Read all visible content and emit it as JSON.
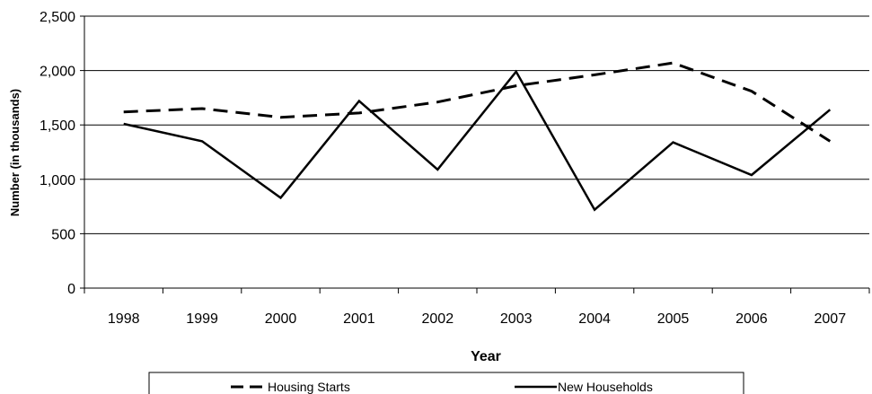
{
  "chart_data": {
    "type": "line",
    "title": "",
    "xlabel": "Year",
    "ylabel": "Number (in thousands)",
    "categories": [
      "1998",
      "1999",
      "2000",
      "2001",
      "2002",
      "2003",
      "2004",
      "2005",
      "2006",
      "2007"
    ],
    "ylim": [
      0,
      2500
    ],
    "yticks": [
      0,
      500,
      1000,
      1500,
      2000,
      2500
    ],
    "ytick_labels": [
      "0",
      "500",
      "1,000",
      "1,500",
      "2,000",
      "2,500"
    ],
    "grid": "horizontal",
    "legend_position": "bottom",
    "series": [
      {
        "name": "Housing Starts",
        "line_style": "dashed",
        "color": "#000000",
        "values": [
          1620,
          1650,
          1570,
          1610,
          1710,
          1860,
          1960,
          2070,
          1810,
          1350
        ]
      },
      {
        "name": "New Households",
        "line_style": "solid",
        "color": "#000000",
        "values": [
          1510,
          1350,
          830,
          1720,
          1090,
          1990,
          720,
          1340,
          1040,
          1640
        ]
      }
    ]
  }
}
